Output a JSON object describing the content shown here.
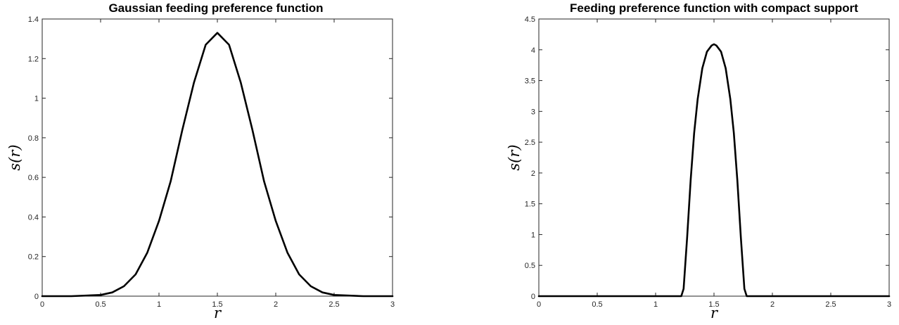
{
  "chart_data": [
    {
      "type": "line",
      "title": "Gaussian feeding preference function",
      "xlabel": "r",
      "ylabel": "s(r)",
      "xlim": [
        0,
        3
      ],
      "ylim": [
        0,
        1.4
      ],
      "xticks": [
        0,
        0.5,
        1,
        1.5,
        2,
        2.5,
        3
      ],
      "xtick_labels": [
        "0",
        "0.5",
        "1",
        "1.5",
        "2",
        "2.5",
        "3"
      ],
      "yticks": [
        0,
        0.2,
        0.4,
        0.6,
        0.8,
        1,
        1.2,
        1.4
      ],
      "ytick_labels": [
        "0",
        "0.2",
        "0.4",
        "0.6",
        "0.8",
        "1",
        "1.2",
        "1.4"
      ],
      "grid": false,
      "series": [
        {
          "color": "#000000",
          "x": [
            0,
            0.25,
            0.5,
            0.6,
            0.7,
            0.8,
            0.9,
            1.0,
            1.1,
            1.2,
            1.3,
            1.4,
            1.5,
            1.6,
            1.7,
            1.8,
            1.9,
            2.0,
            2.1,
            2.2,
            2.3,
            2.4,
            2.5,
            2.75,
            3
          ],
          "y": [
            0,
            0.0,
            0.006,
            0.019,
            0.05,
            0.11,
            0.22,
            0.38,
            0.58,
            0.84,
            1.08,
            1.27,
            1.33,
            1.27,
            1.08,
            0.84,
            0.58,
            0.38,
            0.22,
            0.11,
            0.05,
            0.019,
            0.006,
            0.0,
            0
          ]
        }
      ]
    },
    {
      "type": "line",
      "title": "Feeding preference function with compact support",
      "xlabel": "r",
      "ylabel": "s(r)",
      "xlim": [
        0,
        3
      ],
      "ylim": [
        0,
        4.5
      ],
      "xticks": [
        0,
        0.5,
        1,
        1.5,
        2,
        2.5,
        3
      ],
      "xtick_labels": [
        "0",
        "0.5",
        "1",
        "1.5",
        "2",
        "2.5",
        "3"
      ],
      "yticks": [
        0,
        0.5,
        1,
        1.5,
        2,
        2.5,
        3,
        3.5,
        4,
        4.5
      ],
      "ytick_labels": [
        "0",
        "0.5",
        "1",
        "1.5",
        "2",
        "2.5",
        "3",
        "3.5",
        "4",
        "4.5"
      ],
      "grid": false,
      "series": [
        {
          "color": "#000000",
          "x": [
            0,
            1.22,
            1.24,
            1.27,
            1.3,
            1.33,
            1.36,
            1.4,
            1.44,
            1.48,
            1.5,
            1.52,
            1.56,
            1.6,
            1.64,
            1.67,
            1.7,
            1.73,
            1.76,
            1.78,
            3
          ],
          "y": [
            0,
            0,
            0.12,
            0.95,
            1.88,
            2.65,
            3.2,
            3.7,
            3.97,
            4.07,
            4.09,
            4.07,
            3.97,
            3.7,
            3.2,
            2.65,
            1.88,
            0.95,
            0.12,
            0,
            0
          ]
        }
      ]
    }
  ]
}
